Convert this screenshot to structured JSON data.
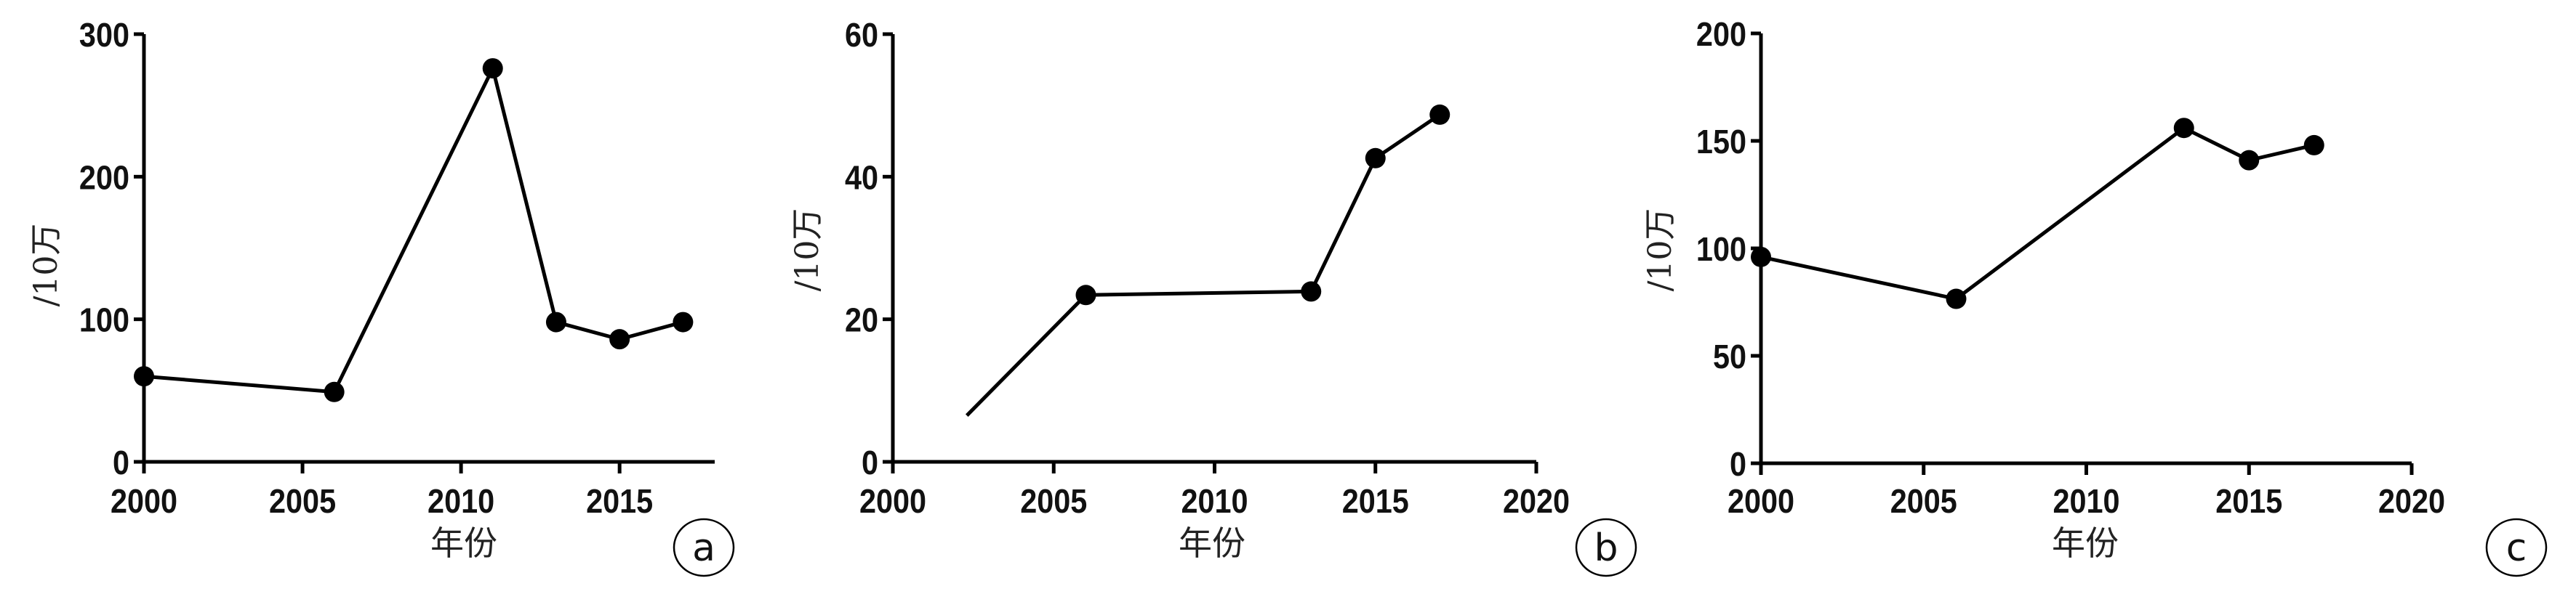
{
  "chart_data": [
    {
      "type": "line",
      "panel_label": "a",
      "xlabel": "年份",
      "ylabel": "/10万",
      "xlim": [
        2000,
        2018
      ],
      "ylim": [
        0,
        300
      ],
      "xticks": [
        2000,
        2005,
        2010,
        2015
      ],
      "yticks": [
        0,
        100,
        200,
        300
      ],
      "grid": false,
      "series": [
        {
          "x": [
            2000,
            2006,
            2011,
            2013,
            2015,
            2017
          ],
          "y": [
            60,
            49,
            276,
            98,
            86,
            98
          ],
          "markers": true
        }
      ],
      "color": "#000000"
    },
    {
      "type": "line",
      "panel_label": "b",
      "xlabel": "年份",
      "ylabel": "/10万",
      "xlim": [
        2000,
        2020
      ],
      "ylim": [
        0,
        60
      ],
      "xticks": [
        2000,
        2005,
        2010,
        2015,
        2020
      ],
      "yticks": [
        0,
        20,
        40,
        60
      ],
      "grid": false,
      "series": [
        {
          "x": [
            2002.3,
            2006,
            2013,
            2015,
            2017
          ],
          "y": [
            6.5,
            23.4,
            23.9,
            42.6,
            48.7
          ],
          "markers": true,
          "first_point_unmarked": true
        }
      ],
      "color": "#000000"
    },
    {
      "type": "line",
      "panel_label": "c",
      "xlabel": "年份",
      "ylabel": "/10万",
      "xlim": [
        2000,
        2020
      ],
      "ylim": [
        0,
        200
      ],
      "xticks": [
        2000,
        2005,
        2010,
        2015,
        2020
      ],
      "yticks": [
        0,
        50,
        100,
        150,
        200
      ],
      "grid": false,
      "series": [
        {
          "x": [
            2000,
            2006,
            2013,
            2015,
            2017
          ],
          "y": [
            96,
            76.5,
            156,
            141,
            148
          ],
          "markers": true
        }
      ],
      "color": "#000000"
    }
  ]
}
